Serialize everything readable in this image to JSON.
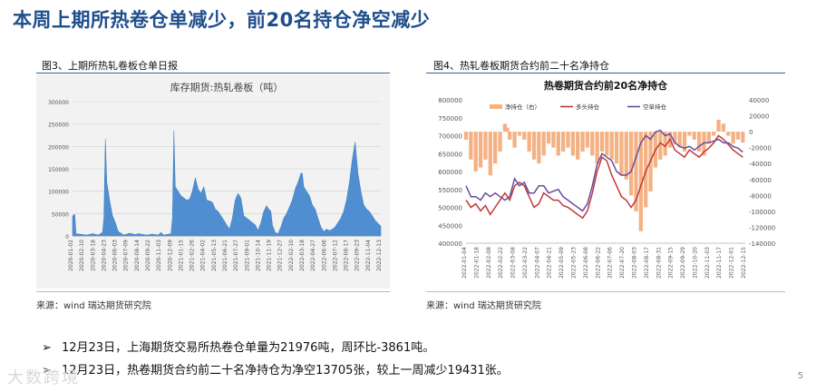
{
  "page_title": "本周上期所热卷仓单减少，前20名持仓净空减少",
  "fig3": {
    "caption": "图3、上期所热轧卷板仓单日报",
    "source": "来源：wind   瑞达期货研究院"
  },
  "fig4": {
    "caption": "图4、热轧卷板期货合约前二十名净持仓",
    "source": "来源：wind   瑞达期货研究院"
  },
  "bullets": [
    "12月23日，上海期货交易所热卷仓单量为21976吨，周环比-3861吨。",
    "12月23日，热卷期货合约前二十名净持仓为净空13705张，较上一周减少19431张。"
  ],
  "page_number": "5",
  "watermark": "大数跨境",
  "colors": {
    "title": "#1f4e8c",
    "area": "#4f8fd1",
    "net_bar": "#f4b183",
    "long": "#c0393b",
    "short": "#6a4c9c"
  },
  "chart_data": [
    {
      "type": "area",
      "title": "库存期货:热轧卷板（吨）",
      "xlabel": "",
      "ylabel": "",
      "ylim": [
        0,
        300000
      ],
      "yticks": [
        0,
        50000,
        100000,
        150000,
        200000,
        250000,
        300000
      ],
      "xtick_labels": [
        "2020-01-02",
        "2020-02-10",
        "2020-03-18",
        "2020-04-23",
        "2020-06-03",
        "2020-07-09",
        "2020-08-14",
        "2020-09-22",
        "2020-11-03",
        "2020-12-09",
        "2021-01-15",
        "2021-02-26",
        "2021-04-02",
        "2021-05-13",
        "2021-06-21",
        "2021-07-27",
        "2021-09-01",
        "2021-10-14",
        "2021-11-19",
        "2021-12-27",
        "2022-02-10",
        "2022-03-18",
        "2022-04-27",
        "2022-06-06",
        "2022-07-12",
        "2022-08-17",
        "2022-09-23",
        "2022-11-04",
        "2022-12-13"
      ],
      "grid": true,
      "points": [
        [
          0,
          45000
        ],
        [
          0.8,
          48000
        ],
        [
          1.2,
          5000
        ],
        [
          5,
          2000
        ],
        [
          7,
          5000
        ],
        [
          9,
          2000
        ],
        [
          10.5,
          8000
        ],
        [
          11,
          40000
        ],
        [
          11.5,
          216000
        ],
        [
          12,
          120000
        ],
        [
          13,
          80000
        ],
        [
          14,
          45000
        ],
        [
          15,
          30000
        ],
        [
          16,
          10000
        ],
        [
          18,
          2000
        ],
        [
          20,
          6000
        ],
        [
          22,
          3000
        ],
        [
          23,
          5000
        ],
        [
          26,
          2000
        ],
        [
          28,
          4000
        ],
        [
          30,
          2000
        ],
        [
          31,
          8000
        ],
        [
          32,
          2000
        ],
        [
          34.5,
          5000
        ],
        [
          35,
          40000
        ],
        [
          35.5,
          235000
        ],
        [
          36,
          110000
        ],
        [
          38,
          90000
        ],
        [
          40,
          80000
        ],
        [
          41,
          82000
        ],
        [
          42,
          100000
        ],
        [
          43,
          130000
        ],
        [
          44,
          105000
        ],
        [
          45,
          95000
        ],
        [
          46,
          110000
        ],
        [
          47,
          80000
        ],
        [
          48,
          78000
        ],
        [
          49,
          75000
        ],
        [
          50,
          60000
        ],
        [
          51,
          55000
        ],
        [
          52,
          45000
        ],
        [
          53,
          35000
        ],
        [
          54,
          25000
        ],
        [
          55,
          15000
        ],
        [
          56,
          40000
        ],
        [
          57,
          80000
        ],
        [
          58,
          95000
        ],
        [
          59,
          85000
        ],
        [
          60,
          45000
        ],
        [
          61,
          40000
        ],
        [
          62,
          35000
        ],
        [
          63,
          30000
        ],
        [
          64,
          25000
        ],
        [
          65,
          12000
        ],
        [
          66,
          30000
        ],
        [
          67,
          55000
        ],
        [
          68,
          68000
        ],
        [
          68.5,
          62000
        ],
        [
          69.5,
          55000
        ],
        [
          70,
          25000
        ],
        [
          71,
          8000
        ],
        [
          72,
          5000
        ],
        [
          73,
          20000
        ],
        [
          74,
          40000
        ],
        [
          75,
          50000
        ],
        [
          76,
          65000
        ],
        [
          77,
          80000
        ],
        [
          78,
          105000
        ],
        [
          79,
          120000
        ],
        [
          80,
          140000
        ],
        [
          80.5,
          140000
        ],
        [
          81,
          110000
        ],
        [
          82,
          100000
        ],
        [
          83,
          90000
        ],
        [
          84,
          70000
        ],
        [
          85,
          60000
        ],
        [
          86,
          40000
        ],
        [
          87,
          20000
        ],
        [
          88,
          10000
        ],
        [
          89,
          15000
        ],
        [
          90,
          12000
        ],
        [
          91,
          15000
        ],
        [
          92,
          20000
        ],
        [
          93,
          30000
        ],
        [
          94,
          40000
        ],
        [
          95,
          55000
        ],
        [
          96,
          80000
        ],
        [
          97,
          120000
        ],
        [
          98,
          170000
        ],
        [
          99,
          210000
        ],
        [
          100,
          140000
        ],
        [
          101,
          100000
        ],
        [
          102,
          70000
        ],
        [
          103,
          60000
        ],
        [
          104,
          55000
        ],
        [
          105,
          45000
        ],
        [
          106,
          35000
        ],
        [
          107,
          28000
        ],
        [
          108,
          22000
        ]
      ],
      "x_max": 108
    },
    {
      "type": "line",
      "title": "热卷期货合约前20名净持仓",
      "legend": [
        "净持仓（右）",
        "多头持仓",
        "空单持仓"
      ],
      "legend_position": "top",
      "ylim_left": [
        400000,
        800000
      ],
      "yticks_left": [
        400000,
        450000,
        500000,
        550000,
        600000,
        650000,
        700000,
        750000,
        800000
      ],
      "ylim_right": [
        -140000,
        40000
      ],
      "yticks_right": [
        -140000,
        -120000,
        -100000,
        -80000,
        -60000,
        -40000,
        -20000,
        0,
        20000,
        40000
      ],
      "xtick_labels": [
        "2022-01-04",
        "2022-01-18",
        "2022-02-08",
        "2022-02-22",
        "2022-03-08",
        "2022-03-22",
        "2022-04-07",
        "2022-04-21",
        "2022-05-09",
        "2022-05-23",
        "2022-06-08",
        "2022-06-22",
        "2022-07-06",
        "2022-07-20",
        "2022-08-03",
        "2022-08-17",
        "2022-08-31",
        "2022-09-15",
        "2022-09-29",
        "2022-10-20",
        "2022-11-03",
        "2022-11-17",
        "2022-12-01",
        "2022-12-15"
      ],
      "grid": false,
      "x_max": 230,
      "net_position": [
        [
          0,
          -10000
        ],
        [
          4,
          -35000
        ],
        [
          8,
          -50000
        ],
        [
          12,
          -45000
        ],
        [
          16,
          -35000
        ],
        [
          20,
          -55000
        ],
        [
          24,
          -40000
        ],
        [
          28,
          -25000
        ],
        [
          32,
          10000
        ],
        [
          34,
          5000
        ],
        [
          36,
          -10000
        ],
        [
          40,
          -20000
        ],
        [
          44,
          -5000
        ],
        [
          48,
          -10000
        ],
        [
          52,
          -25000
        ],
        [
          56,
          -35000
        ],
        [
          60,
          -40000
        ],
        [
          64,
          -30000
        ],
        [
          68,
          -15000
        ],
        [
          72,
          -20000
        ],
        [
          76,
          -30000
        ],
        [
          80,
          -25000
        ],
        [
          84,
          -20000
        ],
        [
          88,
          -30000
        ],
        [
          92,
          -35000
        ],
        [
          96,
          -25000
        ],
        [
          100,
          -20000
        ],
        [
          104,
          -30000
        ],
        [
          108,
          -40000
        ],
        [
          112,
          -25000
        ],
        [
          116,
          -30000
        ],
        [
          120,
          -35000
        ],
        [
          124,
          -40000
        ],
        [
          128,
          -55000
        ],
        [
          132,
          -60000
        ],
        [
          136,
          -80000
        ],
        [
          140,
          -100000
        ],
        [
          144,
          -125000
        ],
        [
          148,
          -95000
        ],
        [
          152,
          -75000
        ],
        [
          156,
          -45000
        ],
        [
          160,
          -35000
        ],
        [
          164,
          -30000
        ],
        [
          168,
          -20000
        ],
        [
          172,
          -15000
        ],
        [
          176,
          -20000
        ],
        [
          180,
          -25000
        ],
        [
          184,
          -5000
        ],
        [
          188,
          -10000
        ],
        [
          192,
          -25000
        ],
        [
          196,
          -30000
        ],
        [
          200,
          -15000
        ],
        [
          204,
          -5000
        ],
        [
          208,
          15000
        ],
        [
          212,
          10000
        ],
        [
          216,
          -5000
        ],
        [
          220,
          -15000
        ],
        [
          224,
          -10000
        ],
        [
          228,
          -13705
        ]
      ],
      "long": [
        [
          0,
          520000
        ],
        [
          4,
          500000
        ],
        [
          8,
          510000
        ],
        [
          12,
          490000
        ],
        [
          16,
          505000
        ],
        [
          20,
          480000
        ],
        [
          24,
          500000
        ],
        [
          28,
          520000
        ],
        [
          32,
          540000
        ],
        [
          36,
          520000
        ],
        [
          40,
          560000
        ],
        [
          44,
          570000
        ],
        [
          48,
          560000
        ],
        [
          52,
          530000
        ],
        [
          56,
          500000
        ],
        [
          60,
          510000
        ],
        [
          64,
          540000
        ],
        [
          68,
          530000
        ],
        [
          72,
          520000
        ],
        [
          76,
          520000
        ],
        [
          80,
          505000
        ],
        [
          84,
          500000
        ],
        [
          88,
          490000
        ],
        [
          92,
          480000
        ],
        [
          96,
          470000
        ],
        [
          100,
          490000
        ],
        [
          104,
          540000
        ],
        [
          108,
          600000
        ],
        [
          112,
          640000
        ],
        [
          116,
          630000
        ],
        [
          120,
          590000
        ],
        [
          124,
          560000
        ],
        [
          128,
          530000
        ],
        [
          132,
          520000
        ],
        [
          136,
          500000
        ],
        [
          140,
          520000
        ],
        [
          144,
          560000
        ],
        [
          148,
          600000
        ],
        [
          152,
          630000
        ],
        [
          156,
          660000
        ],
        [
          160,
          680000
        ],
        [
          164,
          670000
        ],
        [
          168,
          690000
        ],
        [
          172,
          660000
        ],
        [
          176,
          650000
        ],
        [
          180,
          640000
        ],
        [
          184,
          660000
        ],
        [
          188,
          650000
        ],
        [
          192,
          640000
        ],
        [
          196,
          655000
        ],
        [
          200,
          665000
        ],
        [
          204,
          680000
        ],
        [
          208,
          700000
        ],
        [
          212,
          690000
        ],
        [
          216,
          675000
        ],
        [
          220,
          660000
        ],
        [
          224,
          650000
        ],
        [
          228,
          640000
        ]
      ],
      "short": [
        [
          0,
          560000
        ],
        [
          4,
          530000
        ],
        [
          8,
          530000
        ],
        [
          12,
          520000
        ],
        [
          16,
          540000
        ],
        [
          20,
          530000
        ],
        [
          24,
          540000
        ],
        [
          28,
          530000
        ],
        [
          32,
          520000
        ],
        [
          36,
          530000
        ],
        [
          40,
          580000
        ],
        [
          44,
          560000
        ],
        [
          48,
          570000
        ],
        [
          52,
          540000
        ],
        [
          56,
          540000
        ],
        [
          60,
          560000
        ],
        [
          64,
          560000
        ],
        [
          68,
          540000
        ],
        [
          72,
          545000
        ],
        [
          76,
          550000
        ],
        [
          80,
          530000
        ],
        [
          84,
          520000
        ],
        [
          88,
          510000
        ],
        [
          92,
          500000
        ],
        [
          96,
          490000
        ],
        [
          100,
          510000
        ],
        [
          104,
          560000
        ],
        [
          108,
          620000
        ],
        [
          112,
          650000
        ],
        [
          116,
          640000
        ],
        [
          120,
          630000
        ],
        [
          124,
          600000
        ],
        [
          128,
          590000
        ],
        [
          132,
          590000
        ],
        [
          136,
          600000
        ],
        [
          140,
          640000
        ],
        [
          144,
          680000
        ],
        [
          148,
          700000
        ],
        [
          152,
          690000
        ],
        [
          156,
          710000
        ],
        [
          160,
          715000
        ],
        [
          164,
          700000
        ],
        [
          168,
          705000
        ],
        [
          172,
          680000
        ],
        [
          176,
          670000
        ],
        [
          180,
          665000
        ],
        [
          184,
          670000
        ],
        [
          188,
          660000
        ],
        [
          192,
          670000
        ],
        [
          196,
          680000
        ],
        [
          200,
          680000
        ],
        [
          204,
          685000
        ],
        [
          208,
          690000
        ],
        [
          212,
          680000
        ],
        [
          216,
          680000
        ],
        [
          220,
          670000
        ],
        [
          224,
          665000
        ],
        [
          228,
          654000
        ]
      ]
    }
  ]
}
